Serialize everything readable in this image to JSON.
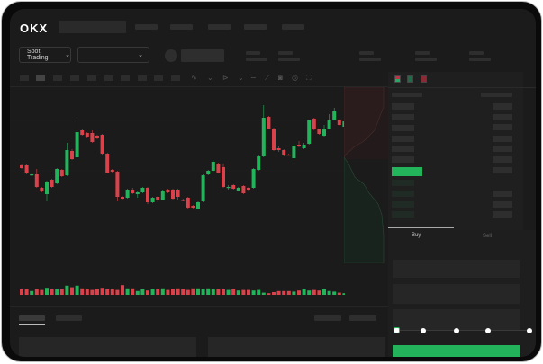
{
  "header": {
    "logo": "OKX",
    "nav_items": 5
  },
  "market": {
    "mode_label": "Spot Trading"
  },
  "trade": {
    "tabs": [
      "Buy",
      "Sell"
    ],
    "active_tab": "Buy",
    "slider_percent": 0
  },
  "colors": {
    "up": "#23b35a",
    "down": "#d9424a",
    "background": "#1b1b1b",
    "accent": "#23b35a"
  },
  "chart_data": {
    "type": "candlestick",
    "title": "",
    "grid": true,
    "ohlc": [
      [
        118,
        119,
        114,
        115
      ],
      [
        118,
        119,
        108,
        109
      ],
      [
        107,
        109,
        106,
        108
      ],
      [
        108,
        114,
        93,
        94
      ],
      [
        93,
        94,
        88,
        89
      ],
      [
        86,
        101,
        78,
        100
      ],
      [
        102,
        103,
        93,
        94
      ],
      [
        98,
        115,
        97,
        114
      ],
      [
        113,
        114,
        105,
        106
      ],
      [
        107,
        143,
        106,
        135
      ],
      [
        134,
        136,
        124,
        125
      ],
      [
        127,
        167,
        126,
        155
      ],
      [
        157,
        158,
        151,
        152
      ],
      [
        154,
        155,
        149,
        150
      ],
      [
        154,
        157,
        143,
        144
      ],
      [
        151,
        152,
        147,
        148
      ],
      [
        152,
        153,
        130,
        131
      ],
      [
        131,
        132,
        109,
        110
      ],
      [
        113,
        114,
        110,
        111
      ],
      [
        111,
        112,
        78,
        83
      ],
      [
        83,
        84,
        80,
        81
      ],
      [
        82,
        92,
        81,
        91
      ],
      [
        91,
        93,
        86,
        87
      ],
      [
        86,
        89,
        82,
        88
      ],
      [
        88,
        94,
        87,
        93
      ],
      [
        93,
        94,
        75,
        77
      ],
      [
        77,
        83,
        76,
        82
      ],
      [
        83,
        84,
        77,
        79
      ],
      [
        80,
        91,
        79,
        90
      ],
      [
        91,
        92,
        87,
        88
      ],
      [
        91,
        92,
        80,
        81
      ],
      [
        91,
        92,
        80,
        83
      ],
      [
        80,
        81,
        78,
        78.5
      ],
      [
        82,
        83,
        70,
        71
      ],
      [
        73,
        74,
        70,
        71
      ],
      [
        70,
        78,
        69,
        77
      ],
      [
        78,
        108,
        77,
        107
      ],
      [
        108,
        113,
        107,
        112
      ],
      [
        112,
        124,
        111,
        122
      ],
      [
        120,
        121,
        109,
        110
      ],
      [
        116,
        120,
        93,
        94
      ],
      [
        93,
        96,
        91,
        94
      ],
      [
        96,
        97,
        91,
        92
      ],
      [
        90,
        94,
        89,
        93
      ],
      [
        95,
        96,
        86,
        87
      ],
      [
        93,
        94,
        90,
        91
      ],
      [
        93,
        115,
        92,
        114
      ],
      [
        113,
        129,
        112,
        128
      ],
      [
        128,
        185,
        127,
        171
      ],
      [
        172,
        173,
        158,
        159
      ],
      [
        159,
        160,
        134,
        135
      ],
      [
        137,
        139,
        133,
        135
      ],
      [
        135,
        136,
        128,
        129
      ],
      [
        130,
        131,
        129,
        129.5
      ],
      [
        126,
        142,
        125,
        140
      ],
      [
        141,
        145,
        138,
        139
      ],
      [
        137,
        143,
        136,
        141
      ],
      [
        142,
        169,
        141,
        168
      ],
      [
        170,
        171,
        157,
        158
      ],
      [
        158,
        159,
        152,
        153
      ],
      [
        151,
        163,
        150,
        159
      ],
      [
        159,
        175,
        158,
        169
      ],
      [
        169,
        182,
        168,
        178
      ],
      [
        169,
        170,
        162,
        163
      ],
      [
        161,
        172,
        160,
        167
      ]
    ],
    "volume": [
      10,
      11,
      7,
      11,
      9,
      13,
      10,
      10,
      10,
      17,
      14,
      17,
      12,
      11,
      9,
      11,
      13,
      10,
      11,
      9,
      18,
      12,
      12,
      7,
      11,
      8,
      11,
      11,
      12,
      9,
      11,
      12,
      11,
      9,
      12,
      12,
      11,
      12,
      10,
      11,
      10,
      9,
      11,
      8,
      9,
      9,
      8,
      9,
      4,
      3,
      5,
      7,
      7,
      7,
      6,
      8,
      10,
      8,
      9,
      8,
      10,
      7,
      6,
      4,
      3
    ]
  }
}
